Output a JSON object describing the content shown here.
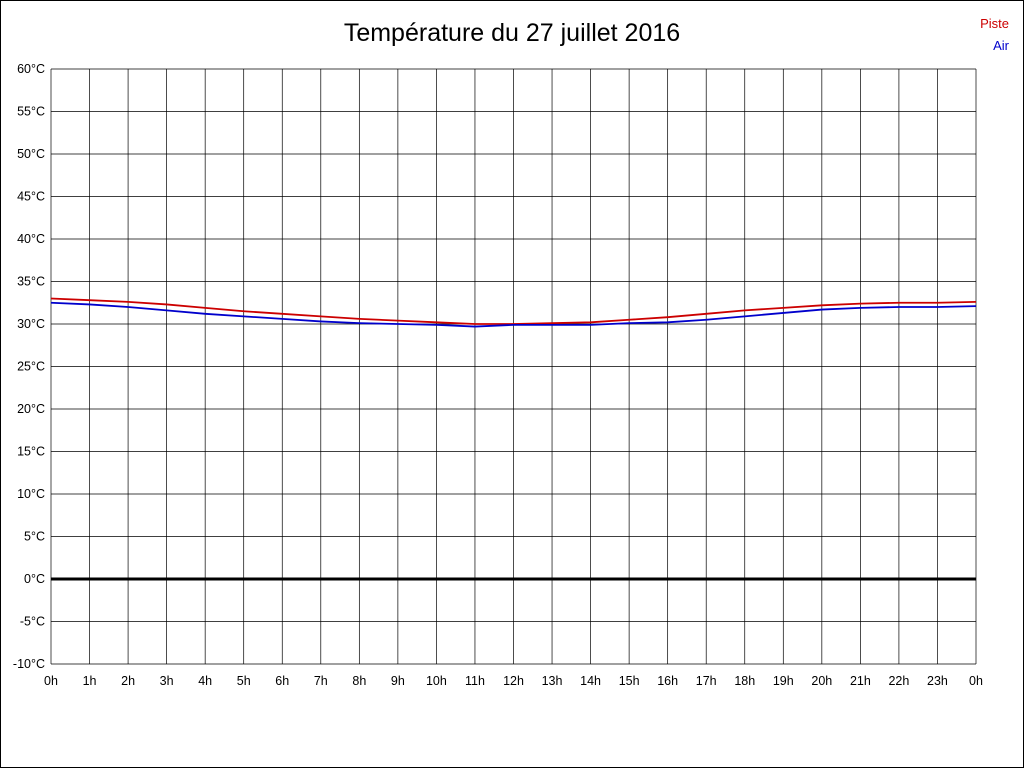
{
  "chart_data": {
    "type": "line",
    "title": "Température du 27 juillet 2016",
    "x_labels": [
      "0h",
      "1h",
      "2h",
      "3h",
      "4h",
      "5h",
      "6h",
      "7h",
      "8h",
      "9h",
      "10h",
      "11h",
      "12h",
      "13h",
      "14h",
      "15h",
      "16h",
      "17h",
      "18h",
      "19h",
      "20h",
      "21h",
      "22h",
      "23h",
      "0h"
    ],
    "ylim": [
      -10,
      60
    ],
    "y_step": 5,
    "y_tick_suffix": "°C",
    "grid": true,
    "zero_line_value": 0,
    "legend_position": "top-right",
    "series": [
      {
        "name": "Piste",
        "color": "#cc0000",
        "values": [
          33.0,
          32.8,
          32.6,
          32.3,
          31.9,
          31.5,
          31.2,
          30.9,
          30.6,
          30.4,
          30.2,
          30.0,
          30.0,
          30.1,
          30.2,
          30.5,
          30.8,
          31.2,
          31.6,
          31.9,
          32.2,
          32.4,
          32.5,
          32.5,
          32.6
        ]
      },
      {
        "name": "Air",
        "color": "#0000cc",
        "values": [
          32.5,
          32.3,
          32.0,
          31.6,
          31.2,
          30.9,
          30.6,
          30.3,
          30.1,
          30.0,
          29.9,
          29.7,
          29.9,
          29.9,
          29.9,
          30.1,
          30.2,
          30.5,
          30.9,
          31.3,
          31.7,
          31.9,
          32.0,
          32.0,
          32.1
        ]
      }
    ]
  }
}
